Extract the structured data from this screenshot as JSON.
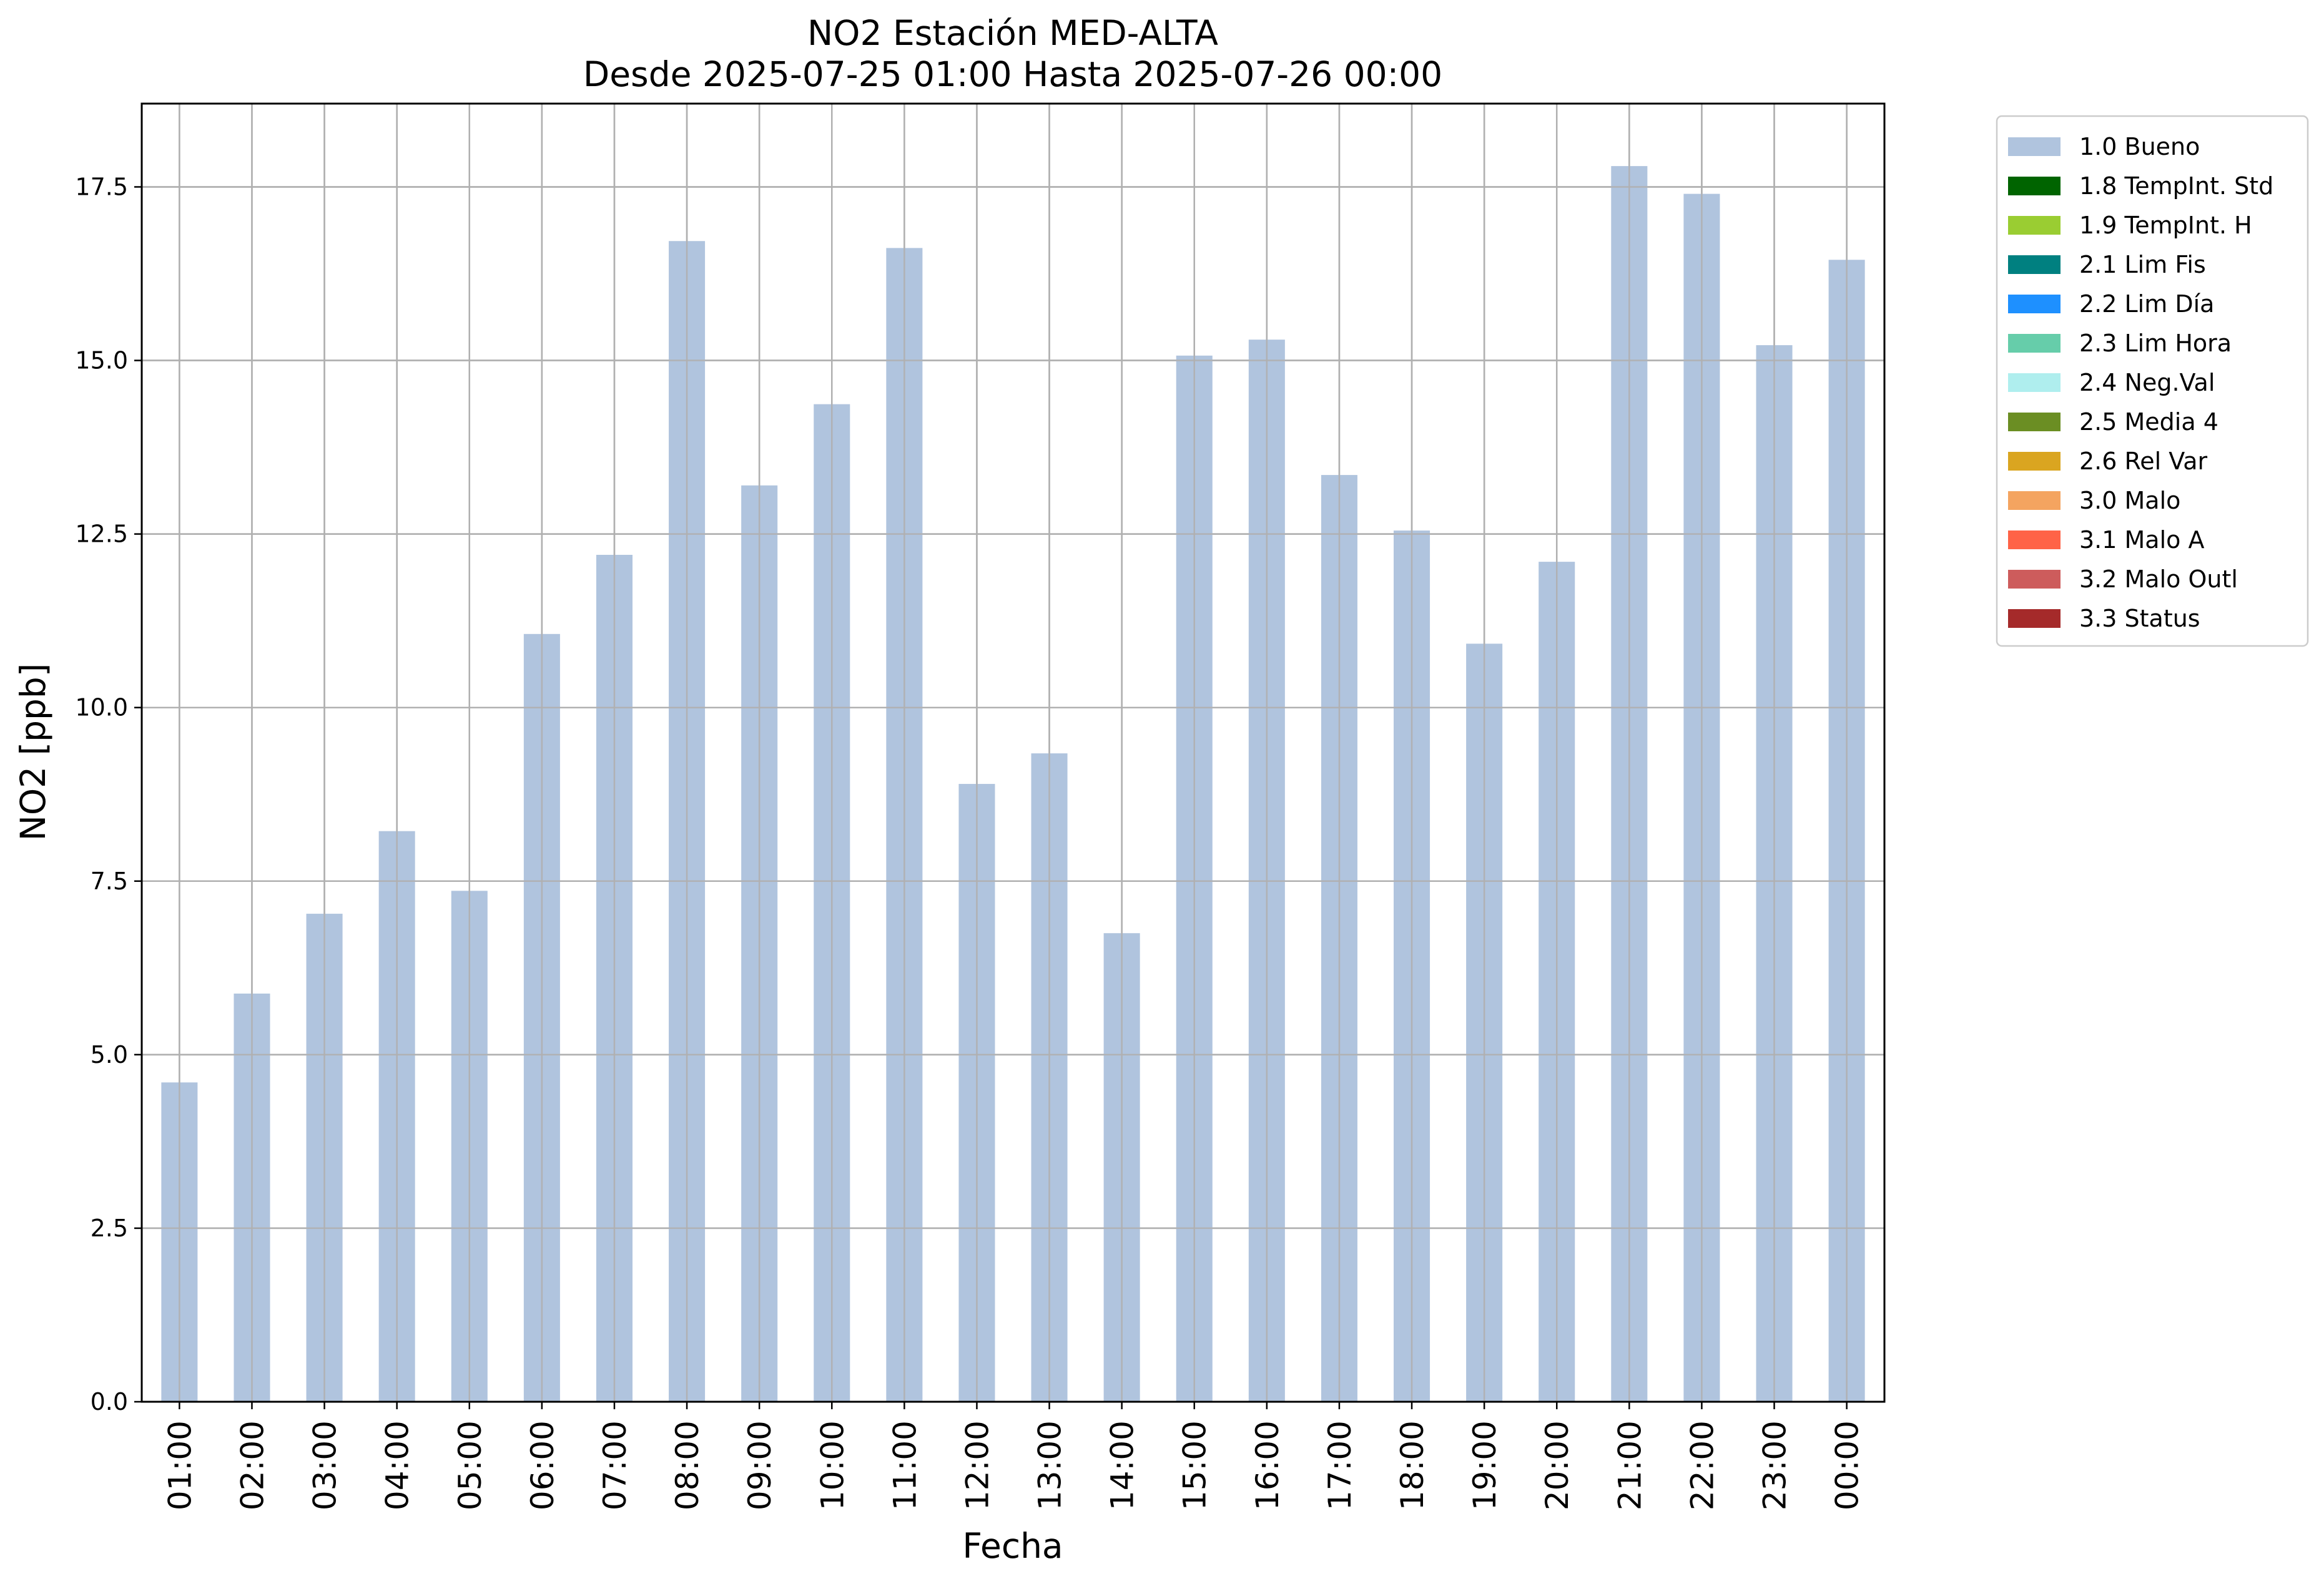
{
  "chart_data": {
    "type": "bar",
    "title": "NO2 Estación MED-ALTA",
    "subtitle": "Desde 2025-07-25 01:00 Hasta 2025-07-26 00:00",
    "xlabel": "Fecha",
    "ylabel": "NO2 [ppb]",
    "ylim": [
      0,
      18.7
    ],
    "yticks": [
      "0.0",
      "2.5",
      "5.0",
      "7.5",
      "10.0",
      "12.5",
      "15.0",
      "17.5"
    ],
    "grid": true,
    "legend_position": "outside-top-right",
    "categories": [
      "01:00",
      "02:00",
      "03:00",
      "04:00",
      "05:00",
      "06:00",
      "07:00",
      "08:00",
      "09:00",
      "10:00",
      "11:00",
      "12:00",
      "13:00",
      "14:00",
      "15:00",
      "16:00",
      "17:00",
      "18:00",
      "19:00",
      "20:00",
      "21:00",
      "22:00",
      "23:00",
      "00:00"
    ],
    "series": [
      {
        "name": "1.0 Bueno",
        "color": "#b0c4de",
        "values": [
          4.6,
          5.88,
          7.03,
          8.22,
          7.36,
          11.06,
          12.2,
          16.72,
          13.2,
          14.37,
          16.62,
          8.9,
          9.34,
          6.75,
          15.07,
          15.3,
          13.35,
          12.55,
          10.92,
          12.1,
          17.8,
          17.4,
          15.22,
          16.45
        ]
      }
    ],
    "legend": [
      {
        "label": "1.0 Bueno",
        "color": "#b0c4de"
      },
      {
        "label": "1.8 TempInt. Std",
        "color": "#006400"
      },
      {
        "label": "1.9 TempInt. H",
        "color": "#9acd32"
      },
      {
        "label": "2.1 Lim Fis",
        "color": "#008080"
      },
      {
        "label": "2.2 Lim Día",
        "color": "#1e90ff"
      },
      {
        "label": "2.3 Lim Hora",
        "color": "#66cdaa"
      },
      {
        "label": "2.4 Neg.Val",
        "color": "#afeeee"
      },
      {
        "label": "2.5 Media 4",
        "color": "#6b8e23"
      },
      {
        "label": "2.6 Rel Var",
        "color": "#daa520"
      },
      {
        "label": "3.0 Malo",
        "color": "#f4a460"
      },
      {
        "label": "3.1 Malo A",
        "color": "#ff6347"
      },
      {
        "label": "3.2 Malo Outl",
        "color": "#cd5c5c"
      },
      {
        "label": "3.3 Status",
        "color": "#a52a2a"
      }
    ]
  }
}
